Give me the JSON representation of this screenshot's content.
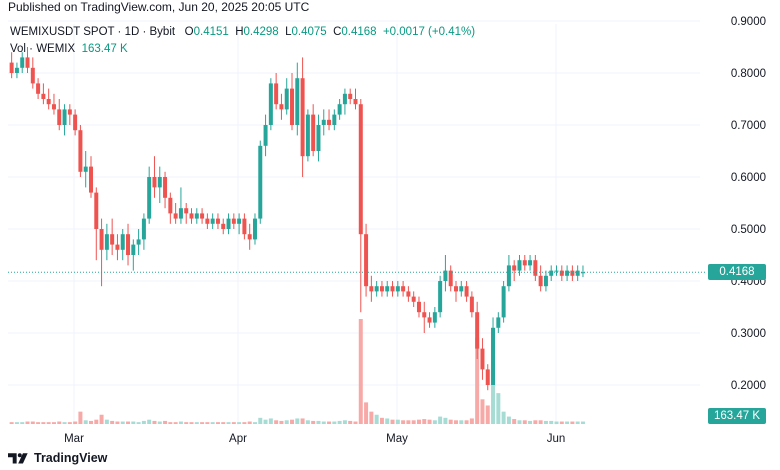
{
  "header": {
    "published": "Published on TradingView.com, Jun 20, 2025 20:05 UTC"
  },
  "legend": {
    "symbol": "WEMIXUSDT SPOT · 1D · Bybit",
    "o_label": "O",
    "o_value": "0.4151",
    "h_label": "H",
    "h_value": "0.4298",
    "l_label": "L",
    "l_value": "0.4075",
    "c_label": "C",
    "c_value": "0.4168",
    "change": "+0.0017 (+0.41%)",
    "vol_label": "Vol · WEMIX",
    "vol_value": "163.47 K"
  },
  "badges": {
    "price": "0.4168",
    "volume": "163.47 K"
  },
  "footer": {
    "brand": "TradingView"
  },
  "colors": {
    "up": "#26a69a",
    "down": "#ef5350",
    "up_volume": "#a7dcd5",
    "down_volume": "#f7a9a7",
    "price_line": "#26a69a",
    "grid": "#f0f3fa"
  },
  "chart_data": {
    "type": "candlestick",
    "title": "WEMIXUSDT SPOT · 1D · Bybit",
    "y_axis": {
      "ticks": [
        "0.9000",
        "0.8000",
        "0.7000",
        "0.6000",
        "0.5000",
        "0.4000",
        "0.3000",
        "0.2000"
      ],
      "range": [
        0.13,
        0.93
      ]
    },
    "x_axis": {
      "labels": [
        "Mar",
        "Apr",
        "May",
        "Jun"
      ]
    },
    "last_price": 0.4168,
    "candles": [
      [
        0.82,
        0.84,
        0.79,
        0.8
      ],
      [
        0.8,
        0.82,
        0.79,
        0.81
      ],
      [
        0.81,
        0.84,
        0.8,
        0.83
      ],
      [
        0.83,
        0.85,
        0.8,
        0.81
      ],
      [
        0.81,
        0.83,
        0.77,
        0.78
      ],
      [
        0.78,
        0.79,
        0.75,
        0.76
      ],
      [
        0.76,
        0.78,
        0.74,
        0.75
      ],
      [
        0.75,
        0.77,
        0.73,
        0.74
      ],
      [
        0.74,
        0.76,
        0.72,
        0.73
      ],
      [
        0.73,
        0.75,
        0.69,
        0.7
      ],
      [
        0.7,
        0.74,
        0.68,
        0.73
      ],
      [
        0.73,
        0.74,
        0.7,
        0.72
      ],
      [
        0.72,
        0.73,
        0.68,
        0.69
      ],
      [
        0.69,
        0.7,
        0.6,
        0.61
      ],
      [
        0.61,
        0.65,
        0.58,
        0.62
      ],
      [
        0.62,
        0.64,
        0.56,
        0.57
      ],
      [
        0.57,
        0.58,
        0.44,
        0.5
      ],
      [
        0.5,
        0.52,
        0.39,
        0.46
      ],
      [
        0.46,
        0.51,
        0.44,
        0.49
      ],
      [
        0.49,
        0.52,
        0.45,
        0.47
      ],
      [
        0.47,
        0.49,
        0.44,
        0.46
      ],
      [
        0.46,
        0.5,
        0.44,
        0.49
      ],
      [
        0.49,
        0.51,
        0.43,
        0.45
      ],
      [
        0.45,
        0.48,
        0.42,
        0.47
      ],
      [
        0.47,
        0.5,
        0.45,
        0.48
      ],
      [
        0.48,
        0.53,
        0.46,
        0.52
      ],
      [
        0.52,
        0.62,
        0.51,
        0.6
      ],
      [
        0.6,
        0.64,
        0.56,
        0.58
      ],
      [
        0.58,
        0.62,
        0.55,
        0.6
      ],
      [
        0.6,
        0.61,
        0.54,
        0.56
      ],
      [
        0.56,
        0.57,
        0.51,
        0.53
      ],
      [
        0.53,
        0.55,
        0.51,
        0.52
      ],
      [
        0.52,
        0.58,
        0.51,
        0.54
      ],
      [
        0.54,
        0.55,
        0.51,
        0.53
      ],
      [
        0.53,
        0.54,
        0.51,
        0.52
      ],
      [
        0.52,
        0.54,
        0.51,
        0.53
      ],
      [
        0.53,
        0.54,
        0.51,
        0.52
      ],
      [
        0.52,
        0.53,
        0.5,
        0.51
      ],
      [
        0.51,
        0.53,
        0.5,
        0.52
      ],
      [
        0.52,
        0.53,
        0.5,
        0.51
      ],
      [
        0.51,
        0.52,
        0.49,
        0.5
      ],
      [
        0.5,
        0.53,
        0.49,
        0.52
      ],
      [
        0.52,
        0.53,
        0.5,
        0.51
      ],
      [
        0.51,
        0.53,
        0.49,
        0.52
      ],
      [
        0.52,
        0.53,
        0.48,
        0.49
      ],
      [
        0.49,
        0.51,
        0.46,
        0.48
      ],
      [
        0.48,
        0.53,
        0.47,
        0.52
      ],
      [
        0.52,
        0.67,
        0.51,
        0.66
      ],
      [
        0.66,
        0.72,
        0.64,
        0.7
      ],
      [
        0.7,
        0.79,
        0.69,
        0.78
      ],
      [
        0.78,
        0.8,
        0.73,
        0.74
      ],
      [
        0.74,
        0.76,
        0.71,
        0.73
      ],
      [
        0.73,
        0.79,
        0.72,
        0.77
      ],
      [
        0.77,
        0.8,
        0.69,
        0.7
      ],
      [
        0.7,
        0.82,
        0.68,
        0.79
      ],
      [
        0.79,
        0.83,
        0.6,
        0.64
      ],
      [
        0.64,
        0.73,
        0.63,
        0.72
      ],
      [
        0.72,
        0.74,
        0.64,
        0.65
      ],
      [
        0.65,
        0.72,
        0.63,
        0.7
      ],
      [
        0.7,
        0.73,
        0.68,
        0.71
      ],
      [
        0.71,
        0.73,
        0.69,
        0.7
      ],
      [
        0.7,
        0.73,
        0.69,
        0.72
      ],
      [
        0.72,
        0.75,
        0.71,
        0.74
      ],
      [
        0.74,
        0.77,
        0.72,
        0.76
      ],
      [
        0.76,
        0.77,
        0.74,
        0.75
      ],
      [
        0.75,
        0.77,
        0.73,
        0.74
      ],
      [
        0.74,
        0.75,
        0.34,
        0.49
      ],
      [
        0.49,
        0.51,
        0.37,
        0.39
      ],
      [
        0.39,
        0.41,
        0.36,
        0.38
      ],
      [
        0.38,
        0.4,
        0.37,
        0.39
      ],
      [
        0.39,
        0.4,
        0.37,
        0.38
      ],
      [
        0.38,
        0.4,
        0.37,
        0.39
      ],
      [
        0.39,
        0.4,
        0.37,
        0.38
      ],
      [
        0.38,
        0.4,
        0.37,
        0.39
      ],
      [
        0.39,
        0.4,
        0.37,
        0.38
      ],
      [
        0.38,
        0.39,
        0.36,
        0.37
      ],
      [
        0.37,
        0.38,
        0.35,
        0.36
      ],
      [
        0.36,
        0.37,
        0.33,
        0.34
      ],
      [
        0.34,
        0.36,
        0.3,
        0.33
      ],
      [
        0.33,
        0.34,
        0.31,
        0.32
      ],
      [
        0.32,
        0.35,
        0.31,
        0.34
      ],
      [
        0.34,
        0.41,
        0.33,
        0.4
      ],
      [
        0.4,
        0.45,
        0.38,
        0.42
      ],
      [
        0.42,
        0.43,
        0.38,
        0.39
      ],
      [
        0.39,
        0.4,
        0.36,
        0.38
      ],
      [
        0.38,
        0.4,
        0.37,
        0.39
      ],
      [
        0.39,
        0.4,
        0.36,
        0.37
      ],
      [
        0.37,
        0.38,
        0.33,
        0.34
      ],
      [
        0.34,
        0.36,
        0.25,
        0.27
      ],
      [
        0.27,
        0.29,
        0.21,
        0.23
      ],
      [
        0.23,
        0.24,
        0.19,
        0.2
      ],
      [
        0.2,
        0.33,
        0.2,
        0.31
      ],
      [
        0.31,
        0.34,
        0.3,
        0.33
      ],
      [
        0.33,
        0.4,
        0.32,
        0.39
      ],
      [
        0.39,
        0.45,
        0.38,
        0.43
      ],
      [
        0.43,
        0.44,
        0.4,
        0.42
      ],
      [
        0.42,
        0.45,
        0.41,
        0.44
      ],
      [
        0.44,
        0.45,
        0.42,
        0.43
      ],
      [
        0.43,
        0.45,
        0.42,
        0.44
      ],
      [
        0.44,
        0.45,
        0.4,
        0.41
      ],
      [
        0.41,
        0.43,
        0.38,
        0.39
      ],
      [
        0.39,
        0.42,
        0.38,
        0.41
      ],
      [
        0.41,
        0.43,
        0.4,
        0.42
      ],
      [
        0.42,
        0.43,
        0.41,
        0.42
      ],
      [
        0.42,
        0.43,
        0.4,
        0.41
      ],
      [
        0.41,
        0.43,
        0.4,
        0.42
      ],
      [
        0.42,
        0.43,
        0.4,
        0.41
      ],
      [
        0.41,
        0.43,
        0.4,
        0.42
      ],
      [
        0.4151,
        0.4298,
        0.4075,
        0.4168
      ]
    ],
    "volumes": [
      0.3,
      0.3,
      0.3,
      0.4,
      0.4,
      0.3,
      0.3,
      0.3,
      0.3,
      0.4,
      0.3,
      0.3,
      0.4,
      2.0,
      0.6,
      0.5,
      0.7,
      1.5,
      0.7,
      0.5,
      0.4,
      0.4,
      0.4,
      0.4,
      0.3,
      0.5,
      0.7,
      0.5,
      0.4,
      0.5,
      0.3,
      0.3,
      0.4,
      0.3,
      0.3,
      0.3,
      0.3,
      0.3,
      0.3,
      0.3,
      0.3,
      0.3,
      0.3,
      0.3,
      0.3,
      0.4,
      0.3,
      1.0,
      0.7,
      0.9,
      0.6,
      0.5,
      0.6,
      0.7,
      0.9,
      0.9,
      0.6,
      0.5,
      0.5,
      0.4,
      0.4,
      0.4,
      0.5,
      0.6,
      0.5,
      0.4,
      17.0,
      3.5,
      2.0,
      1.5,
      1.0,
      0.9,
      0.7,
      0.7,
      0.6,
      0.6,
      0.6,
      0.7,
      0.8,
      0.7,
      0.6,
      1.2,
      1.0,
      0.7,
      0.6,
      0.6,
      0.6,
      0.9,
      14.0,
      4.0,
      3.0,
      14.0,
      5.0,
      2.0,
      1.2,
      0.8,
      0.6,
      0.6,
      0.5,
      0.6,
      0.6,
      0.5,
      0.5,
      0.4,
      0.4,
      0.4,
      0.4,
      0.4,
      0.4
    ]
  }
}
